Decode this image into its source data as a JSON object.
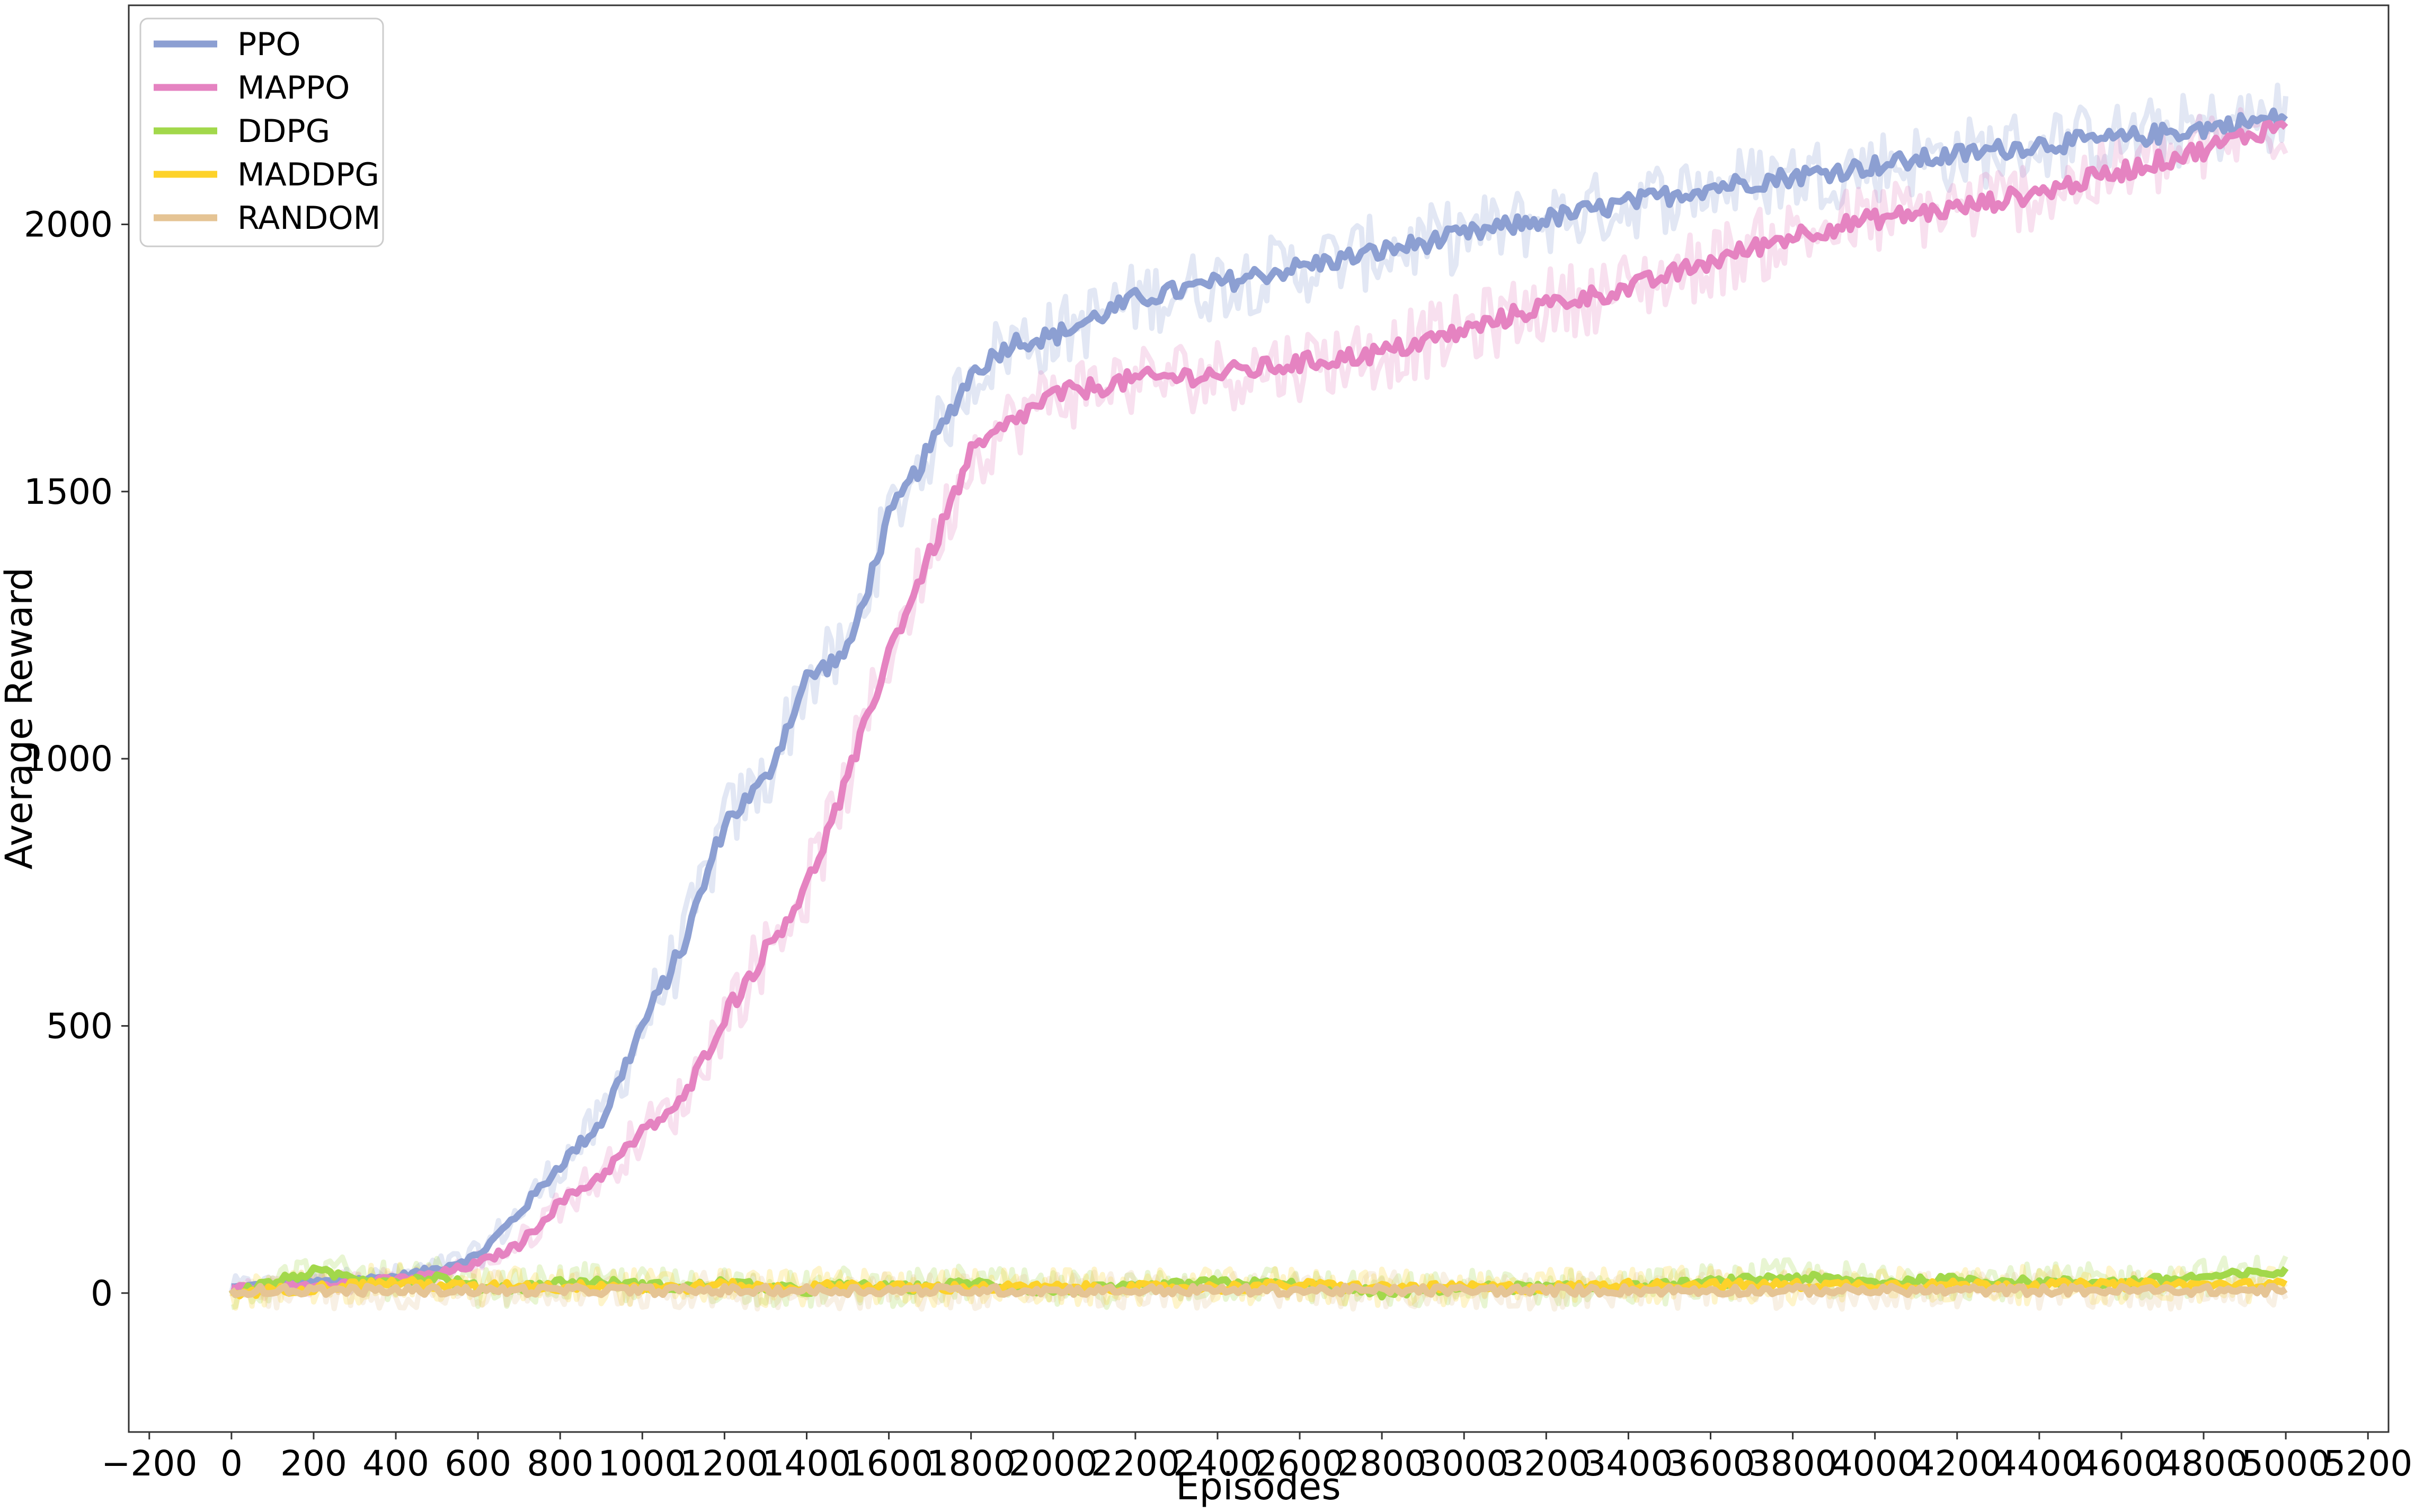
{
  "chart_data": {
    "type": "line",
    "xlabel": "Episodes",
    "ylabel": "Average Reward",
    "xlim": [
      -250,
      5250
    ],
    "ylim": [
      -260,
      2410
    ],
    "x_ticks": [
      -200,
      0,
      200,
      400,
      600,
      800,
      1000,
      1200,
      1400,
      1600,
      1800,
      2000,
      2200,
      2400,
      2600,
      2800,
      3000,
      3200,
      3400,
      3600,
      3800,
      4000,
      4200,
      4400,
      4600,
      4800,
      5000,
      5200
    ],
    "x_tick_labels": [
      "−200",
      "0",
      "200",
      "400",
      "600",
      "800",
      "1000",
      "1200",
      "1400",
      "1600",
      "1800",
      "2000",
      "2200",
      "2400",
      "2600",
      "2800",
      "3000",
      "3200",
      "3400",
      "3600",
      "3800",
      "4000",
      "4200",
      "4400",
      "4600",
      "4800",
      "5000",
      "5200"
    ],
    "y_ticks": [
      0,
      500,
      1000,
      1500,
      2000
    ],
    "y_tick_labels": [
      "0",
      "500",
      "1000",
      "1500",
      "2000"
    ],
    "grid": false,
    "legend_position": "top-left",
    "x": [
      0,
      200,
      400,
      500,
      600,
      700,
      800,
      900,
      1000,
      1100,
      1200,
      1300,
      1400,
      1500,
      1600,
      1700,
      1800,
      1900,
      2000,
      2200,
      2400,
      2600,
      2800,
      3000,
      3200,
      3400,
      3600,
      3800,
      4000,
      4200,
      4400,
      4600,
      4800,
      5000
    ],
    "series": [
      {
        "name": "PPO",
        "color": "#8c9fd2",
        "values": [
          10,
          20,
          30,
          45,
          70,
          150,
          240,
          320,
          500,
          650,
          880,
          960,
          1150,
          1200,
          1450,
          1580,
          1720,
          1780,
          1790,
          1860,
          1890,
          1920,
          1950,
          1980,
          2010,
          2040,
          2070,
          2090,
          2110,
          2130,
          2150,
          2160,
          2180,
          2200
        ]
      },
      {
        "name": "MAPPO",
        "color": "#e583c1",
        "values": [
          10,
          15,
          25,
          35,
          55,
          90,
          170,
          220,
          300,
          360,
          520,
          640,
          760,
          960,
          1200,
          1380,
          1570,
          1630,
          1680,
          1710,
          1720,
          1740,
          1760,
          1800,
          1850,
          1880,
          1930,
          1980,
          2010,
          2030,
          2060,
          2100,
          2140,
          2190
        ]
      },
      {
        "name": "DDPG",
        "color": "#a2d84b",
        "values": [
          0,
          40,
          20,
          30,
          10,
          10,
          20,
          20,
          15,
          10,
          20,
          10,
          5,
          15,
          10,
          10,
          20,
          10,
          5,
          10,
          20,
          15,
          0,
          10,
          10,
          10,
          20,
          30,
          20,
          25,
          20,
          20,
          30,
          40
        ]
      },
      {
        "name": "MADDPG",
        "color": "#fdd22a",
        "values": [
          0,
          10,
          20,
          15,
          10,
          15,
          10,
          15,
          10,
          10,
          15,
          10,
          10,
          15,
          10,
          10,
          10,
          10,
          10,
          10,
          10,
          15,
          10,
          10,
          10,
          15,
          15,
          15,
          15,
          15,
          15,
          15,
          15,
          15
        ]
      },
      {
        "name": "RANDOM",
        "color": "#e5c494",
        "values": [
          5,
          5,
          5,
          5,
          5,
          5,
          5,
          5,
          5,
          5,
          5,
          5,
          5,
          5,
          5,
          5,
          5,
          5,
          5,
          5,
          5,
          5,
          5,
          5,
          5,
          5,
          5,
          5,
          5,
          5,
          5,
          5,
          5,
          5
        ]
      }
    ]
  }
}
